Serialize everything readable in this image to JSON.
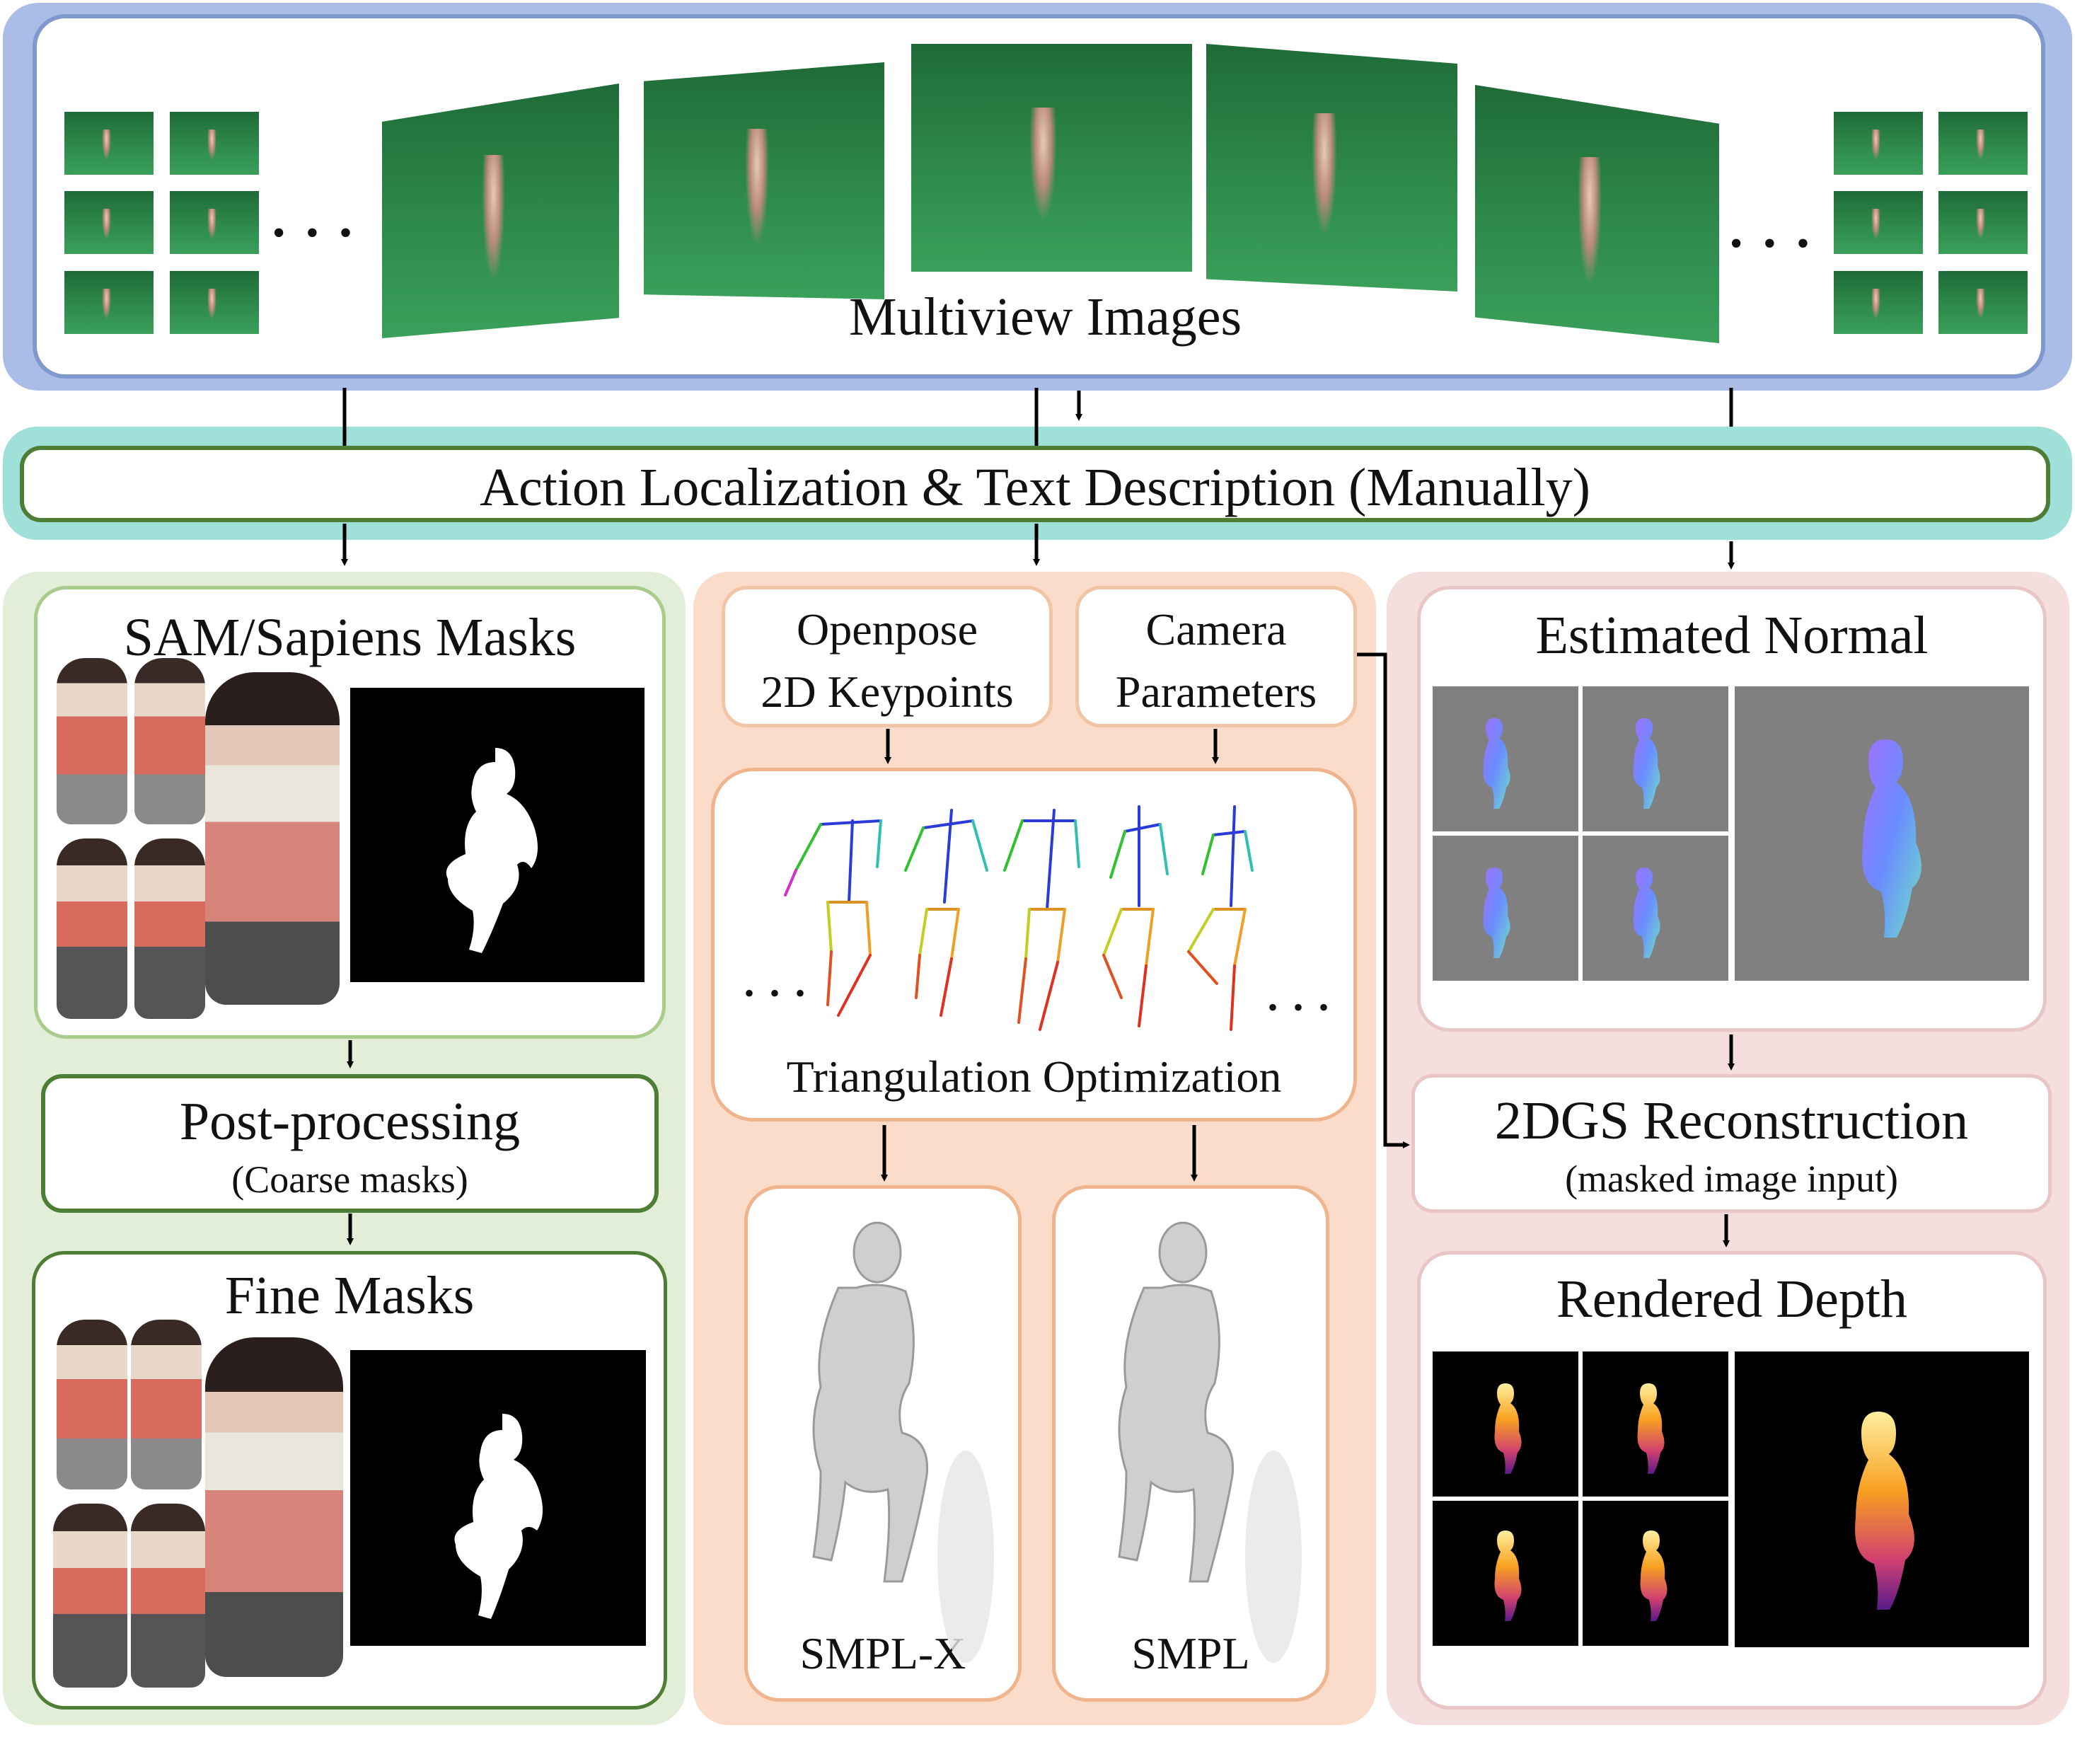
{
  "top": {
    "title": "Multiview Images",
    "ellipsis_left": "• • •",
    "ellipsis_right": "• • •"
  },
  "action": {
    "label": "Action Localization & Text Description (Manually)"
  },
  "left": {
    "masks_title": "SAM/Sapiens Masks",
    "post_title": "Post-processing",
    "post_sub": "(Coarse masks)",
    "fine_title": "Fine Masks"
  },
  "middle": {
    "openpose_line1": "Openpose",
    "openpose_line2": "2D Keypoints",
    "camera_line1": "Camera",
    "camera_line2": "Parameters",
    "triangulation_title": "Triangulation Optimization",
    "ellipsis_left": "• • •",
    "ellipsis_right": "• • •",
    "smplx_label": "SMPL-X",
    "smpl_label": "SMPL"
  },
  "right": {
    "normal_title": "Estimated Normal",
    "recon_title": "2DGS Reconstruction",
    "recon_sub": "(masked image input)",
    "depth_title": "Rendered Depth"
  },
  "colors": {
    "top_panel": "#a9bde6",
    "action_panel": "#9fe0d8",
    "left_panel": "#e3eed9",
    "middle_panel": "#fbdccb",
    "right_panel": "#f5dede",
    "green_border": "#4e7d36",
    "orange_border": "#f0b48c",
    "pink_border": "#e8c6c6",
    "blue_border": "#7f99cf"
  }
}
